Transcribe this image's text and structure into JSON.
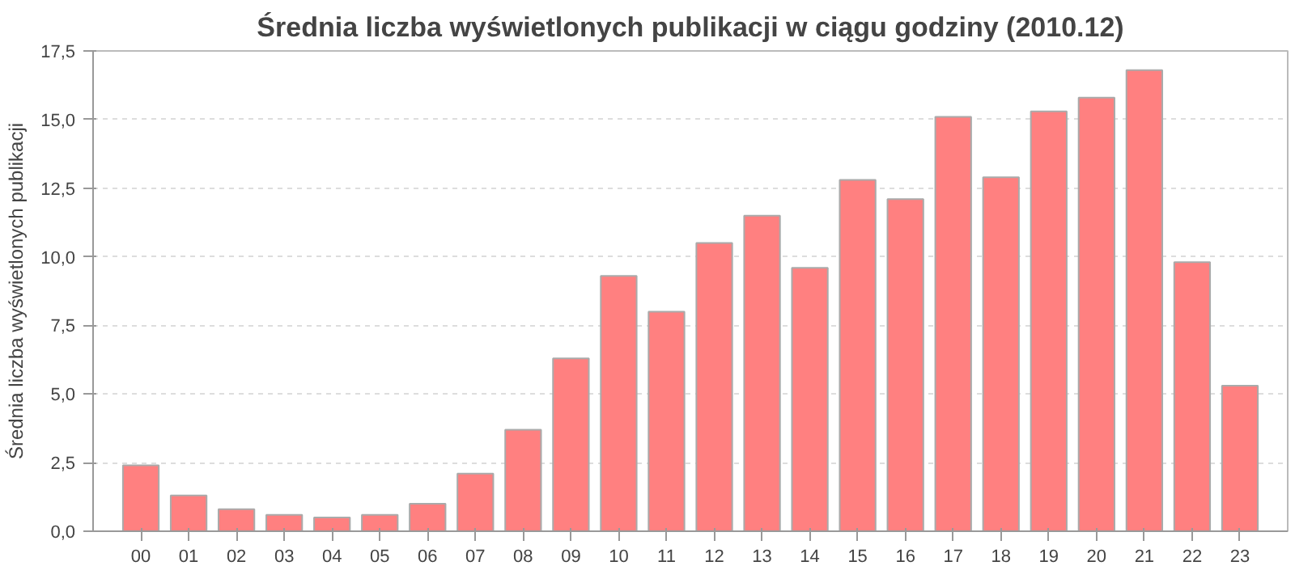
{
  "chart_data": {
    "type": "bar",
    "title": "Średnia liczba wyświetlonych publikacji w ciągu godziny (2010.12)",
    "ylabel": "Średnia liczba wyświetlonych publikacji",
    "categories": [
      "00",
      "01",
      "02",
      "03",
      "04",
      "05",
      "06",
      "07",
      "08",
      "09",
      "10",
      "11",
      "12",
      "13",
      "14",
      "15",
      "16",
      "17",
      "18",
      "19",
      "20",
      "21",
      "22",
      "23"
    ],
    "series": [
      {
        "color": "#ff8080",
        "values": [
          2.4,
          1.3,
          0.8,
          0.6,
          0.5,
          0.6,
          1.0,
          2.1,
          3.7,
          6.3,
          9.3,
          8.0,
          10.5,
          11.5,
          9.6,
          12.8,
          12.1,
          15.1,
          12.9,
          15.3,
          15.8,
          16.8,
          9.8,
          5.3
        ]
      }
    ],
    "ylim": [
      0,
      17.5
    ],
    "yticks": [
      {
        "value": 0,
        "label": "0,0"
      },
      {
        "value": 2.5,
        "label": "2,5"
      },
      {
        "value": 5,
        "label": "5,0"
      },
      {
        "value": 7.5,
        "label": "7,5"
      },
      {
        "value": 10,
        "label": "10,0"
      },
      {
        "value": 12.5,
        "label": "12,5"
      },
      {
        "value": 15,
        "label": "15,0"
      },
      {
        "value": 17.5,
        "label": "17,5"
      }
    ],
    "grid": "y"
  }
}
